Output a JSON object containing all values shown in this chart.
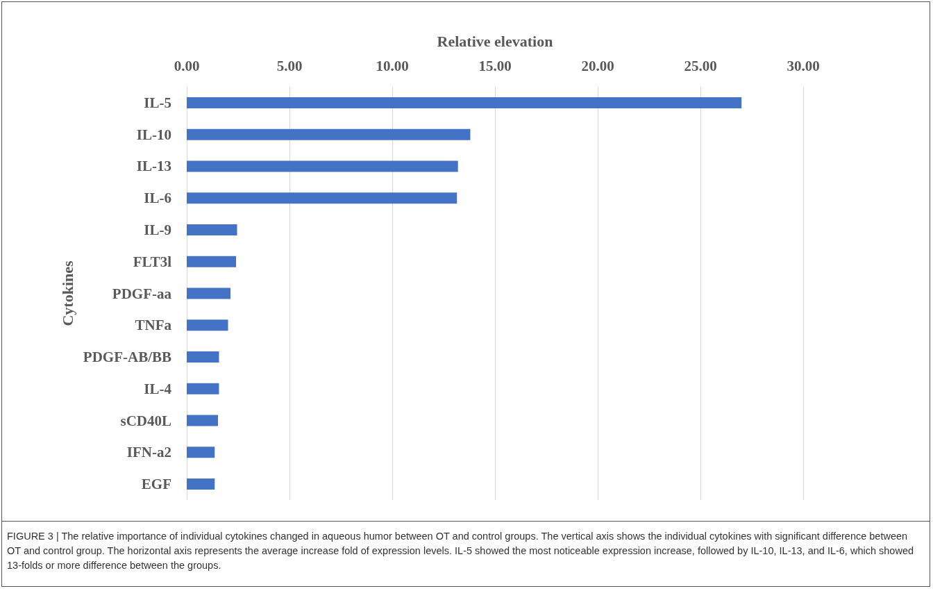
{
  "chart_data": {
    "type": "bar",
    "orientation": "horizontal",
    "xlabel": "Relative elevation",
    "ylabel": "Cytokines",
    "categories": [
      "IL-5",
      "IL-10",
      "IL-13",
      "IL-6",
      "IL-9",
      "FLT3l",
      "PDGF-aa",
      "TNFa",
      "PDGF-AB/BB",
      "IL-4",
      "sCD40L",
      "IFN-a2",
      "EGF"
    ],
    "values": [
      27.0,
      13.8,
      13.2,
      13.15,
      2.45,
      2.4,
      2.13,
      2.01,
      1.57,
      1.57,
      1.52,
      1.36,
      1.36
    ],
    "color": "#4472c4",
    "xlim": [
      0,
      30
    ],
    "xticks": [
      {
        "value": 0,
        "label": "0.00"
      },
      {
        "value": 5,
        "label": "5.00"
      },
      {
        "value": 10,
        "label": "10.00"
      },
      {
        "value": 15,
        "label": "15.00"
      },
      {
        "value": 20,
        "label": "20.00"
      },
      {
        "value": 25,
        "label": "25.00"
      },
      {
        "value": 30,
        "label": "30.00"
      }
    ],
    "grid": "x",
    "annotations": [
      "FIGURE 3 | The relative importance of individual cytokines changed in aqueous humor between OT and control groups. The vertical axis shows the individual cytokines with significant difference between OT and control group. The horizontal axis represents the average increase fold of expression levels. IL-5 showed the most noticeable expression increase, followed by IL-10, IL-13, and IL-6, which showed 13-folds or more difference between the groups."
    ]
  }
}
